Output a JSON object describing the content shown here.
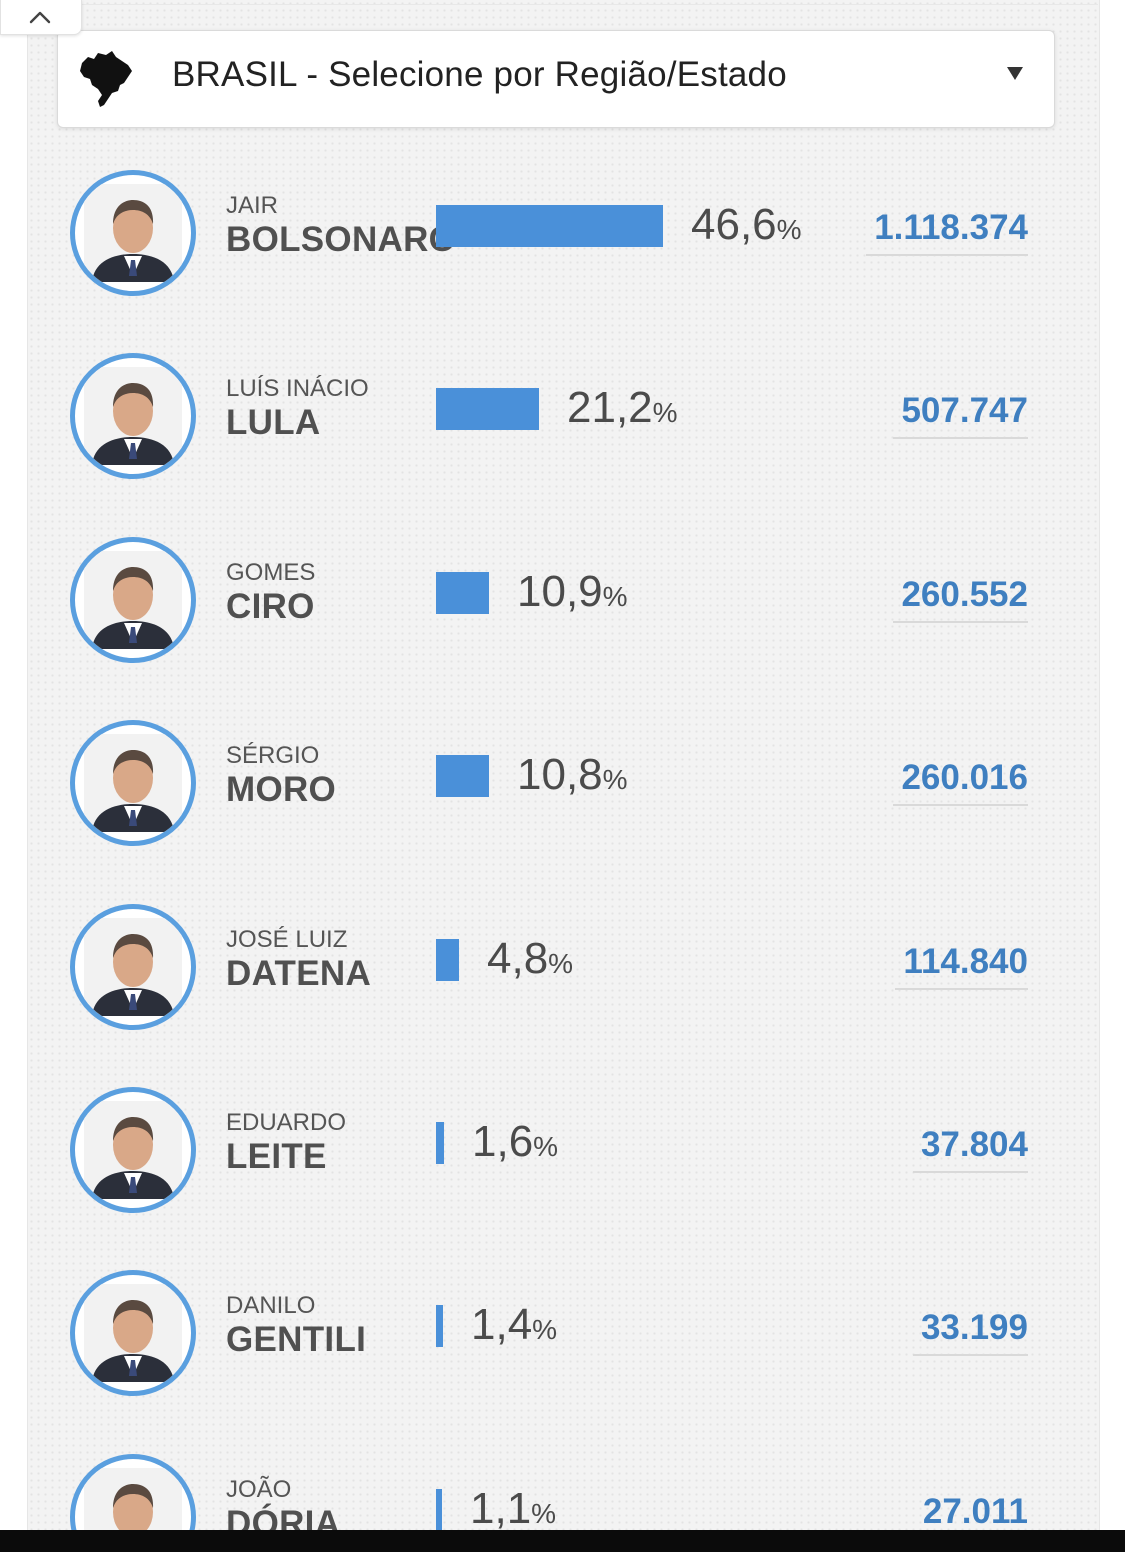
{
  "selector": {
    "label": "BRASIL - Selecione por Região/Estado",
    "map_icon": "brazil-map-icon",
    "caret_icon": "caret-down-icon"
  },
  "collapse_icon": "chevron-up-icon",
  "colors": {
    "accent_blue": "#4a90d9",
    "avatar_ring": "#5a9fdf",
    "votes_text": "#3f7fc0"
  },
  "candidates": [
    {
      "first": "JAIR",
      "last": "BOLSONARO",
      "pct_value": "46,6",
      "pct": 46.6,
      "pct_symbol": "%",
      "votes": "1.118.374"
    },
    {
      "first": "LUÍS INÁCIO",
      "last": "LULA",
      "pct_value": "21,2",
      "pct": 21.2,
      "pct_symbol": "%",
      "votes": "507.747"
    },
    {
      "first": "GOMES",
      "last": "CIRO",
      "pct_value": "10,9",
      "pct": 10.9,
      "pct_symbol": "%",
      "votes": "260.552"
    },
    {
      "first": "SÉRGIO",
      "last": "MORO",
      "pct_value": "10,8",
      "pct": 10.8,
      "pct_symbol": "%",
      "votes": "260.016"
    },
    {
      "first": "JOSÉ LUIZ",
      "last": "DATENA",
      "pct_value": "4,8",
      "pct": 4.8,
      "pct_symbol": "%",
      "votes": "114.840"
    },
    {
      "first": "EDUARDO",
      "last": "LEITE",
      "pct_value": "1,6",
      "pct": 1.6,
      "pct_symbol": "%",
      "votes": "37.804"
    },
    {
      "first": "DANILO",
      "last": "GENTILI",
      "pct_value": "1,4",
      "pct": 1.4,
      "pct_symbol": "%",
      "votes": "33.199"
    },
    {
      "first": "JOÃO",
      "last": "DÓRIA",
      "pct_value": "1,1",
      "pct": 1.1,
      "pct_symbol": "%",
      "votes": "27.011"
    }
  ]
}
